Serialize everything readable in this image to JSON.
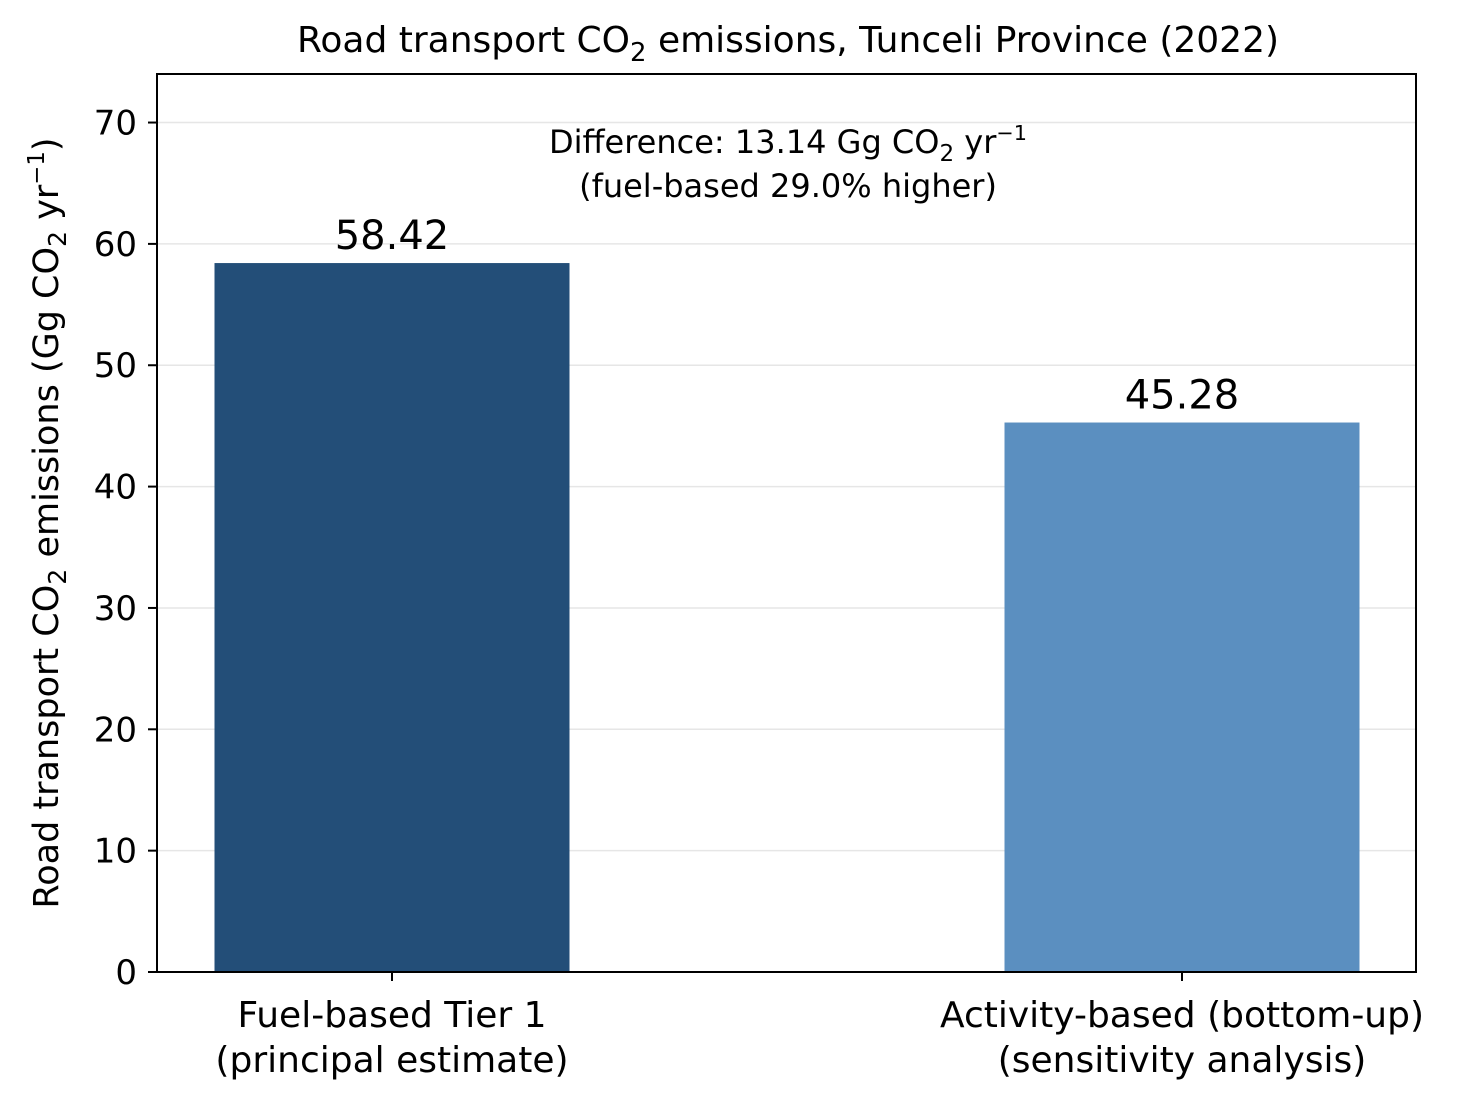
{
  "chart_data": {
    "type": "bar",
    "title": {
      "main": "Road transport CO",
      "sub": "2",
      "rest": " emissions, Tunceli Province (2022)"
    },
    "ylabel": {
      "part1": "Road transport CO",
      "sub1": "2",
      "part2": " emissions (Gg CO",
      "sub2": "2",
      "part3": " yr",
      "sup": "−1",
      "part4": ")"
    },
    "categories": [
      {
        "line1": "Fuel-based Tier 1",
        "line2": "(principal estimate)"
      },
      {
        "line1": "Activity-based (bottom-up)",
        "line2": "(sensitivity analysis)"
      }
    ],
    "values": [
      58.42,
      45.28
    ],
    "value_labels": [
      "58.42",
      "45.28"
    ],
    "colors": [
      "#234e78",
      "#5b8fc0"
    ],
    "ylim": [
      0,
      74
    ],
    "yticks": [
      0,
      10,
      20,
      30,
      40,
      50,
      60,
      70
    ],
    "grid": true,
    "annotation": {
      "line1_a": "Difference: 13.14 Gg CO",
      "line1_sub": "2",
      "line1_b": " yr",
      "line1_sup": "−1",
      "line2": "(fuel-based 29.0% higher)"
    }
  }
}
